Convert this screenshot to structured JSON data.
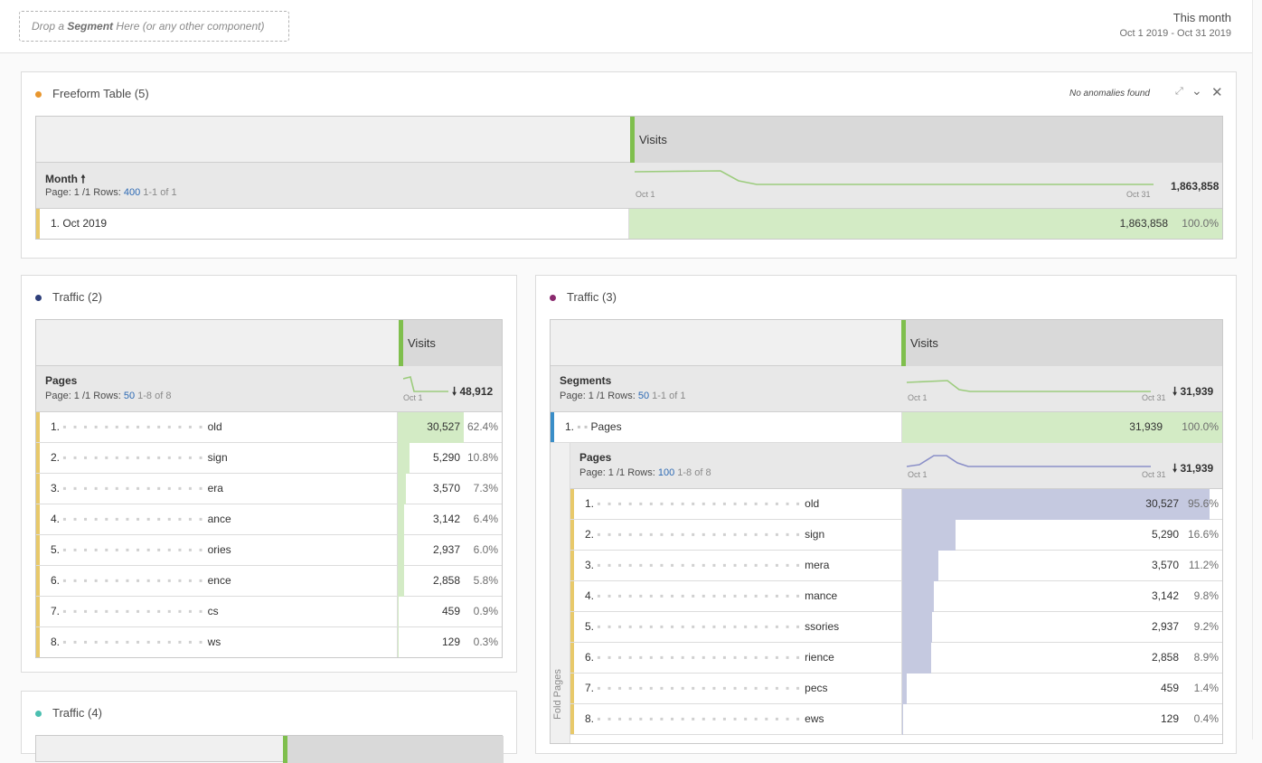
{
  "topbar": {
    "drop_prefix": "Drop a",
    "drop_bold": "Segment",
    "drop_suffix": "Here (or any other component)",
    "date_title": "This month",
    "date_range": "Oct 1 2019 - Oct 31 2019"
  },
  "freeform": {
    "title": "Freeform Table (5)",
    "dot_color": "#e8962e",
    "anomalies": "No anomalies found",
    "metric": "Visits",
    "dim_title": "Month",
    "page_label": "Page: 1 /1 Rows:",
    "rows_value": "400",
    "range": "1-1 of 1",
    "axis_start": "Oct 1",
    "axis_end": "Oct 31",
    "total": "1,863,858",
    "rows": [
      {
        "label": "1. Oct 2019",
        "value": "1,863,858",
        "pct": "100.0%",
        "share": 1.0
      }
    ]
  },
  "traffic2": {
    "title": "Traffic (2)",
    "dot_color": "#2e3f7a",
    "metric": "Visits",
    "dim_title": "Pages",
    "page_label": "Page: 1 /1 Rows:",
    "rows_value": "50",
    "range": "1-8 of 8",
    "axis_start": "Oct 1",
    "total": "48,912",
    "rows": [
      {
        "label": "1.",
        "tail": "old",
        "value": "30,527",
        "pct": "62.4%",
        "share": 0.624
      },
      {
        "label": "2.",
        "tail": "sign",
        "value": "5,290",
        "pct": "10.8%",
        "share": 0.108
      },
      {
        "label": "3.",
        "tail": "era",
        "value": "3,570",
        "pct": "7.3%",
        "share": 0.073
      },
      {
        "label": "4.",
        "tail": "ance",
        "value": "3,142",
        "pct": "6.4%",
        "share": 0.064
      },
      {
        "label": "5.",
        "tail": "ories",
        "value": "2,937",
        "pct": "6.0%",
        "share": 0.06
      },
      {
        "label": "6.",
        "tail": "ence",
        "value": "2,858",
        "pct": "5.8%",
        "share": 0.058
      },
      {
        "label": "7.",
        "tail": "cs",
        "value": "459",
        "pct": "0.9%",
        "share": 0.009
      },
      {
        "label": "8.",
        "tail": "ws",
        "value": "129",
        "pct": "0.3%",
        "share": 0.003
      }
    ]
  },
  "traffic3": {
    "title": "Traffic (3)",
    "dot_color": "#8a2a6e",
    "metric": "Visits",
    "dim_title": "Segments",
    "page_label": "Page: 1 /1 Rows:",
    "rows_value": "50",
    "range": "1-1 of 1",
    "axis_start": "Oct 1",
    "axis_end": "Oct 31",
    "total": "31,939",
    "segment_row": {
      "label": "1.",
      "tail": "Pages",
      "value": "31,939",
      "pct": "100.0%",
      "share": 1.0
    },
    "nested": {
      "dim_title": "Pages",
      "page_label": "Page: 1 /1 Rows:",
      "rows_value": "100",
      "range": "1-8 of 8",
      "axis_start": "Oct 1",
      "axis_end": "Oct 31",
      "total": "31,939",
      "side_label": "Fold Pages",
      "rows": [
        {
          "label": "1.",
          "tail": "old",
          "value": "30,527",
          "pct": "95.6%",
          "share": 0.956
        },
        {
          "label": "2.",
          "tail": "sign",
          "value": "5,290",
          "pct": "16.6%",
          "share": 0.166
        },
        {
          "label": "3.",
          "tail": "mera",
          "value": "3,570",
          "pct": "11.2%",
          "share": 0.112
        },
        {
          "label": "4.",
          "tail": "mance",
          "value": "3,142",
          "pct": "9.8%",
          "share": 0.098
        },
        {
          "label": "5.",
          "tail": "ssories",
          "value": "2,937",
          "pct": "9.2%",
          "share": 0.092
        },
        {
          "label": "6.",
          "tail": "rience",
          "value": "2,858",
          "pct": "8.9%",
          "share": 0.089
        },
        {
          "label": "7.",
          "tail": "pecs",
          "value": "459",
          "pct": "1.4%",
          "share": 0.014
        },
        {
          "label": "8.",
          "tail": "ews",
          "value": "129",
          "pct": "0.4%",
          "share": 0.004
        }
      ]
    }
  },
  "traffic4": {
    "title": "Traffic (4)",
    "dot_color": "#4bbfb0"
  },
  "colors": {
    "green_fill": "#d3ebc5",
    "purple_fill": "#c5c9e0",
    "sparkline_green": "#9ccc7d",
    "sparkline_purple": "#8a8fc8"
  }
}
